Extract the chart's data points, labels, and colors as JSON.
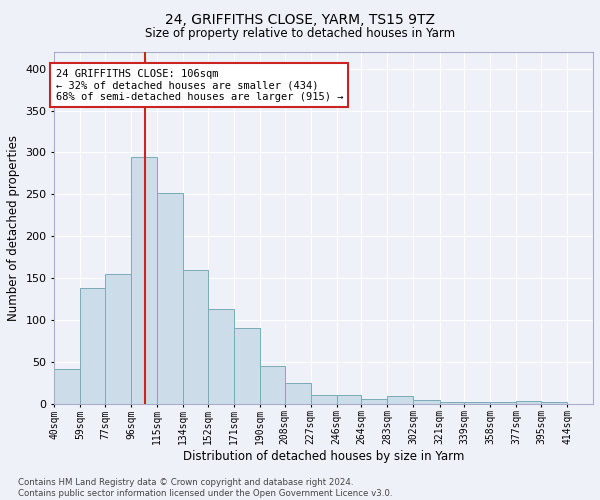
{
  "title": "24, GRIFFITHS CLOSE, YARM, TS15 9TZ",
  "subtitle": "Size of property relative to detached houses in Yarm",
  "xlabel": "Distribution of detached houses by size in Yarm",
  "ylabel": "Number of detached properties",
  "footer_line1": "Contains HM Land Registry data © Crown copyright and database right 2024.",
  "footer_line2": "Contains public sector information licensed under the Open Government Licence v3.0.",
  "property_label": "24 GRIFFITHS CLOSE: 106sqm",
  "annotation_line1": "← 32% of detached houses are smaller (434)",
  "annotation_line2": "68% of semi-detached houses are larger (915) →",
  "bar_color": "#ccdce8",
  "bar_edge_color": "#7aabb8",
  "vline_color": "#cc2222",
  "background_color": "#eef2f8",
  "grid_color": "#ffffff",
  "bins": [
    "40sqm",
    "59sqm",
    "77sqm",
    "96sqm",
    "115sqm",
    "134sqm",
    "152sqm",
    "171sqm",
    "190sqm",
    "208sqm",
    "227sqm",
    "246sqm",
    "264sqm",
    "283sqm",
    "302sqm",
    "321sqm",
    "339sqm",
    "358sqm",
    "377sqm",
    "395sqm",
    "414sqm"
  ],
  "bin_edges": [
    40,
    59,
    77,
    96,
    115,
    134,
    152,
    171,
    190,
    208,
    227,
    246,
    264,
    283,
    302,
    321,
    339,
    358,
    377,
    395,
    414
  ],
  "bar_heights": [
    42,
    138,
    155,
    295,
    252,
    160,
    113,
    90,
    45,
    25,
    10,
    10,
    6,
    9,
    4,
    2,
    2,
    2,
    3,
    2
  ],
  "ylim": [
    0,
    420
  ],
  "yticks": [
    0,
    50,
    100,
    150,
    200,
    250,
    300,
    350,
    400
  ],
  "annotation_box_color": "#ffffff",
  "annotation_box_edge": "#cc2222",
  "vline_x": 106
}
